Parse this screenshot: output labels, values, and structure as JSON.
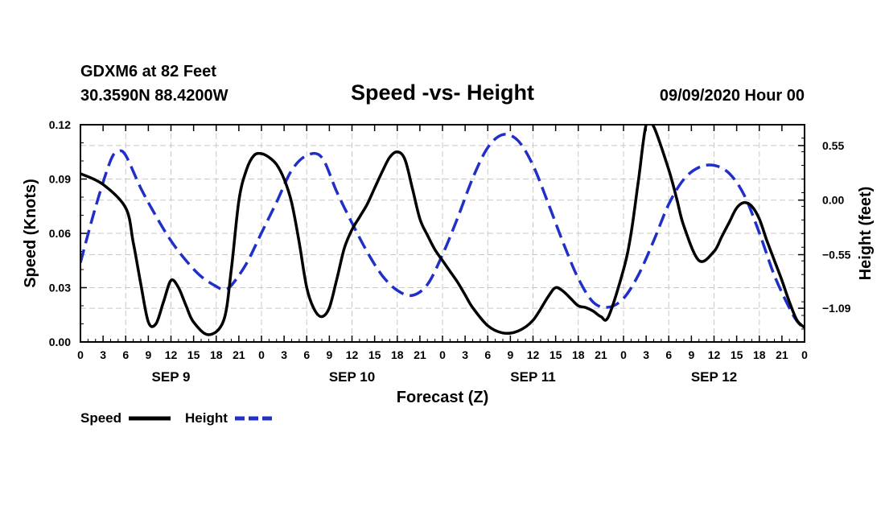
{
  "header": {
    "station": "GDXM6 at 82 Feet",
    "coords": "30.3590N 88.4200W",
    "title": "Speed -vs- Height",
    "datetime": "09/09/2020 Hour 00"
  },
  "chart_data": {
    "type": "line",
    "title": "Speed -vs- Height",
    "xlabel": "Forecast (Z)",
    "ylabel_left": "Speed (Knots)",
    "ylabel_right": "Height (feet)",
    "grid": true,
    "x_hours_range": [
      0,
      96
    ],
    "y_left_range": [
      0,
      0.12
    ],
    "y_left_ticks": [
      "0.00",
      "0.03",
      "0.06",
      "0.09",
      "0.12"
    ],
    "y_right_range": [
      -1.43,
      0.76
    ],
    "y_right_ticks": [
      {
        "value": 0.55,
        "label": "0.55"
      },
      {
        "value": 0.0,
        "label": "0.00"
      },
      {
        "value": -0.55,
        "label": "−0.55"
      },
      {
        "value": -1.09,
        "label": "−1.09"
      }
    ],
    "x_tick_labels": [
      "0",
      "3",
      "6",
      "9",
      "12",
      "15",
      "18",
      "21",
      "0",
      "3",
      "6",
      "9",
      "12",
      "15",
      "18",
      "21",
      "0",
      "3",
      "6",
      "9",
      "12",
      "15",
      "18",
      "21",
      "0",
      "3",
      "6",
      "9",
      "12",
      "15",
      "18",
      "21",
      "0"
    ],
    "day_labels": [
      {
        "hour": 12,
        "label": "SEP 9"
      },
      {
        "hour": 36,
        "label": "SEP 10"
      },
      {
        "hour": 60,
        "label": "SEP 11"
      },
      {
        "hour": 84,
        "label": "SEP 12"
      }
    ],
    "series": [
      {
        "name": "Speed",
        "axis": "left",
        "color": "#000000",
        "style": "solid",
        "x": [
          0,
          3,
          6,
          7,
          8,
          9,
          10,
          11,
          12,
          13,
          14,
          15,
          17,
          19,
          20,
          21,
          22,
          23,
          24,
          25,
          26,
          27,
          28,
          29,
          30,
          31,
          32,
          33,
          34,
          35,
          36,
          37,
          38,
          39,
          40,
          41,
          42,
          43,
          44,
          45,
          46,
          47,
          48,
          49,
          50,
          51,
          52,
          54,
          56,
          58,
          60,
          62,
          63,
          64,
          65,
          66,
          67,
          68,
          69,
          70,
          72,
          73,
          74,
          75,
          76,
          78,
          79,
          80,
          82,
          84,
          85,
          86,
          87,
          88,
          89,
          90,
          91,
          92,
          93,
          94,
          95,
          96
        ],
        "y": [
          0.093,
          0.087,
          0.074,
          0.055,
          0.032,
          0.011,
          0.01,
          0.022,
          0.034,
          0.03,
          0.02,
          0.011,
          0.004,
          0.012,
          0.04,
          0.078,
          0.095,
          0.103,
          0.104,
          0.102,
          0.098,
          0.09,
          0.077,
          0.055,
          0.03,
          0.018,
          0.014,
          0.019,
          0.035,
          0.052,
          0.062,
          0.069,
          0.076,
          0.085,
          0.094,
          0.102,
          0.105,
          0.101,
          0.085,
          0.068,
          0.059,
          0.051,
          0.045,
          0.039,
          0.033,
          0.026,
          0.019,
          0.009,
          0.005,
          0.006,
          0.012,
          0.025,
          0.03,
          0.028,
          0.024,
          0.02,
          0.019,
          0.017,
          0.014,
          0.014,
          0.04,
          0.06,
          0.09,
          0.12,
          0.119,
          0.095,
          0.08,
          0.064,
          0.045,
          0.05,
          0.058,
          0.066,
          0.074,
          0.077,
          0.075,
          0.068,
          0.056,
          0.045,
          0.034,
          0.022,
          0.012,
          0.008
        ]
      },
      {
        "name": "Height",
        "axis": "right",
        "color": "#1f2fc8",
        "style": "dashed",
        "x": [
          0,
          2,
          4,
          5,
          6,
          8,
          10,
          12,
          14,
          16,
          18,
          19,
          20,
          22,
          24,
          26,
          28,
          30,
          32,
          34,
          36,
          38,
          40,
          42,
          44,
          46,
          48,
          50,
          52,
          54,
          56,
          58,
          60,
          62,
          64,
          66,
          68,
          70,
          72,
          74,
          76,
          78,
          80,
          82,
          84,
          86,
          88,
          90,
          92,
          94,
          95,
          96
        ],
        "y": [
          -0.63,
          -0.07,
          0.4,
          0.49,
          0.45,
          0.12,
          -0.16,
          -0.41,
          -0.61,
          -0.77,
          -0.87,
          -0.9,
          -0.86,
          -0.64,
          -0.33,
          -0.02,
          0.3,
          0.45,
          0.43,
          0.08,
          -0.23,
          -0.52,
          -0.76,
          -0.91,
          -0.96,
          -0.85,
          -0.55,
          -0.18,
          0.22,
          0.53,
          0.66,
          0.6,
          0.35,
          -0.03,
          -0.43,
          -0.79,
          -1.03,
          -1.08,
          -0.99,
          -0.75,
          -0.41,
          -0.04,
          0.21,
          0.33,
          0.35,
          0.27,
          0.05,
          -0.33,
          -0.76,
          -1.09,
          -1.22,
          -1.3
        ]
      }
    ]
  },
  "legend": {
    "speed_label": "Speed",
    "height_label": "Height"
  }
}
